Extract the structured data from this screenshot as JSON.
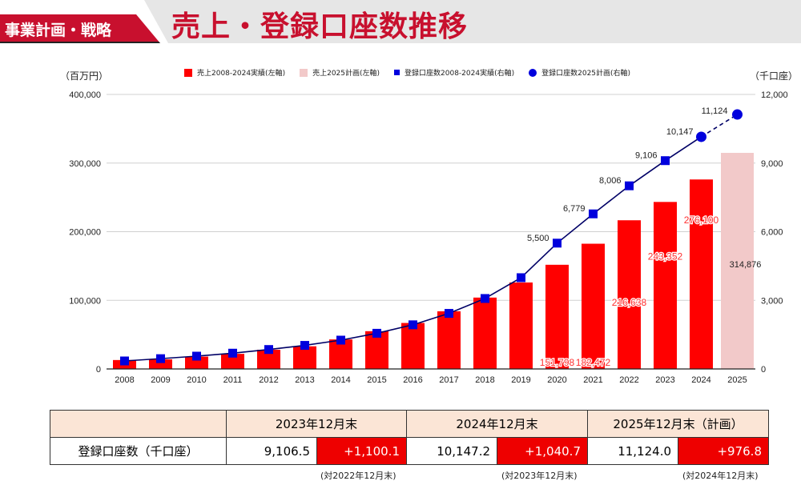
{
  "header": {
    "section_badge": "事業計画・戦略",
    "title": "売上・登録口座数推移"
  },
  "chart_data": {
    "type": "bar+line",
    "title": "売上・登録口座数推移",
    "left_axis_unit": "（百万円）",
    "right_axis_unit": "（千口座）",
    "categories": [
      "2008",
      "2009",
      "2010",
      "2011",
      "2012",
      "2013",
      "2014",
      "2015",
      "2016",
      "2017",
      "2018",
      "2019",
      "2020",
      "2021",
      "2022",
      "2023",
      "2024",
      "2025"
    ],
    "left_ylim": [
      0,
      400000
    ],
    "left_ticks": [
      "0",
      "100,000",
      "200,000",
      "300,000",
      "400,000"
    ],
    "left_tick_values": [
      0,
      100000,
      200000,
      300000,
      400000
    ],
    "right_ylim": [
      0,
      12000
    ],
    "right_ticks": [
      "0",
      "3,000",
      "6,000",
      "9,000",
      "12,000"
    ],
    "right_tick_values": [
      0,
      3000,
      6000,
      9000,
      12000
    ],
    "grid": true,
    "legend_position": "top",
    "legend": [
      {
        "label": "売上2008-2024実績(左軸)",
        "color": "#ff0000",
        "shape": "square"
      },
      {
        "label": "売上2025計画(左軸)",
        "color": "#f2c9c9",
        "shape": "square"
      },
      {
        "label": "登録口座数2008-2024実績(右軸)",
        "color": "#0000dd",
        "shape": "small-square"
      },
      {
        "label": "登録口座数2025計画(右軸)",
        "color": "#0000dd",
        "shape": "circle"
      }
    ],
    "series": [
      {
        "name": "売上2008-2024実績(左軸)",
        "type": "bar",
        "axis": "left",
        "color": "#ff0000",
        "values": [
          13000,
          14000,
          18000,
          22000,
          28000,
          33000,
          43000,
          55000,
          67000,
          84000,
          104000,
          126000,
          151798,
          182472,
          216638,
          243352,
          276100,
          null
        ],
        "labels": [
          null,
          null,
          null,
          null,
          null,
          null,
          null,
          null,
          null,
          null,
          null,
          null,
          "151,798",
          "182,472",
          "216,638",
          "243,352",
          "276,100",
          null
        ]
      },
      {
        "name": "売上2025計画(左軸)",
        "type": "bar",
        "axis": "left",
        "color": "#f2c9c9",
        "values": [
          null,
          null,
          null,
          null,
          null,
          null,
          null,
          null,
          null,
          null,
          null,
          null,
          null,
          null,
          null,
          null,
          null,
          314876
        ],
        "labels": [
          null,
          null,
          null,
          null,
          null,
          null,
          null,
          null,
          null,
          null,
          null,
          null,
          null,
          null,
          null,
          null,
          null,
          "314,876"
        ]
      },
      {
        "name": "登録口座数2008-2024実績(右軸)",
        "type": "line",
        "axis": "right",
        "color": "#0000dd",
        "line_color": "#000066",
        "values": [
          350,
          450,
          560,
          690,
          850,
          1030,
          1260,
          1560,
          1930,
          2430,
          3080,
          3990,
          5500,
          6779,
          8006,
          9106,
          10147,
          null
        ],
        "labels": [
          null,
          null,
          null,
          null,
          null,
          null,
          null,
          null,
          null,
          null,
          null,
          null,
          "5,500",
          "6,779",
          "8,006",
          "9,106",
          "10,147",
          null
        ]
      },
      {
        "name": "登録口座数2025計画(右軸)",
        "type": "line-dashed",
        "axis": "right",
        "color": "#0000dd",
        "values": [
          null,
          null,
          null,
          null,
          null,
          null,
          null,
          null,
          null,
          null,
          null,
          null,
          null,
          null,
          null,
          null,
          10147,
          11124
        ],
        "labels": [
          null,
          null,
          null,
          null,
          null,
          null,
          null,
          null,
          null,
          null,
          null,
          null,
          null,
          null,
          null,
          null,
          null,
          "11,124"
        ]
      }
    ]
  },
  "table": {
    "row_label": "登録口座数（千口座）",
    "columns": [
      {
        "header": "2023年12月末",
        "value": "9,106.5",
        "delta": "+1,100.1",
        "note": "(対2022年12月末)"
      },
      {
        "header": "2024年12月末",
        "value": "10,147.2",
        "delta": "+1,040.7",
        "note": "(対2023年12月末)"
      },
      {
        "header": "2025年12月末（計画）",
        "value": "11,124.0",
        "delta": "+976.8",
        "note": "(対2024年12月末)"
      }
    ]
  }
}
